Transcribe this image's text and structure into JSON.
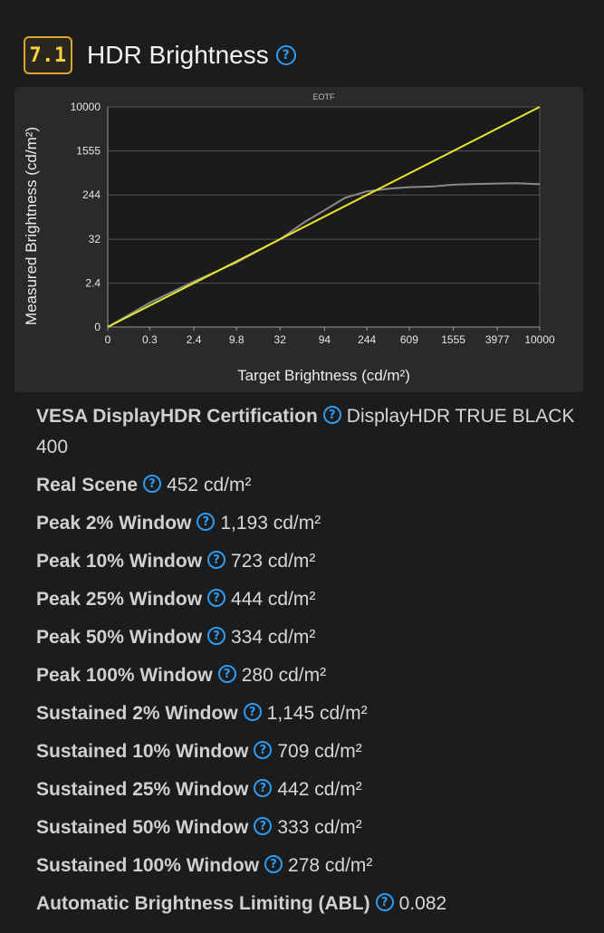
{
  "section": {
    "score": "7.1",
    "title": "HDR Brightness",
    "help_icon": "question-circle-icon"
  },
  "chart_data": {
    "type": "line",
    "title": "EOTF",
    "xlabel": "Target Brightness (cd/m²)",
    "ylabel": "Measured Brightness (cd/m²)",
    "x_ticks": [
      "0",
      "0.3",
      "2.4",
      "9.8",
      "32",
      "94",
      "244",
      "609",
      "1555",
      "3977",
      "10000"
    ],
    "y_ticks": [
      "0",
      "2.4",
      "32",
      "244",
      "1555",
      "10000"
    ],
    "x_scale": "pq",
    "y_scale": "pq",
    "grid": "horizontal",
    "colors": {
      "background": "#2a2a2a",
      "plot": "#1b1b1b",
      "grid": "#555555",
      "target": "#e6e62e",
      "measured": "#8a8a8a"
    },
    "series": [
      {
        "role": "target",
        "x": [
          0,
          10000
        ],
        "y": [
          0,
          10000
        ]
      },
      {
        "role": "measured",
        "x": [
          0,
          0.3,
          2.4,
          9.8,
          32,
          60,
          94,
          150,
          244,
          400,
          609,
          1000,
          1555,
          2500,
          3977,
          6000,
          10000
        ],
        "y": [
          0,
          0.42,
          2.7,
          9.2,
          32,
          75,
          125,
          215,
          285,
          320,
          340,
          350,
          378,
          390,
          398,
          402,
          385
        ]
      }
    ]
  },
  "specs": [
    {
      "label": "VESA DisplayHDR Certification",
      "value": "DisplayHDR TRUE BLACK 400"
    },
    {
      "label": "Real Scene",
      "value": "452 cd/m²"
    },
    {
      "label": "Peak 2% Window",
      "value": "1,193 cd/m²"
    },
    {
      "label": "Peak 10% Window",
      "value": "723 cd/m²"
    },
    {
      "label": "Peak 25% Window",
      "value": "444 cd/m²"
    },
    {
      "label": "Peak 50% Window",
      "value": "334 cd/m²"
    },
    {
      "label": "Peak 100% Window",
      "value": "280 cd/m²"
    },
    {
      "label": "Sustained 2% Window",
      "value": "1,145 cd/m²"
    },
    {
      "label": "Sustained 10% Window",
      "value": "709 cd/m²"
    },
    {
      "label": "Sustained 25% Window",
      "value": "442 cd/m²"
    },
    {
      "label": "Sustained 50% Window",
      "value": "333 cd/m²"
    },
    {
      "label": "Sustained 100% Window",
      "value": "278 cd/m²"
    },
    {
      "label": "Automatic Brightness Limiting (ABL)",
      "value": "0.082"
    }
  ]
}
